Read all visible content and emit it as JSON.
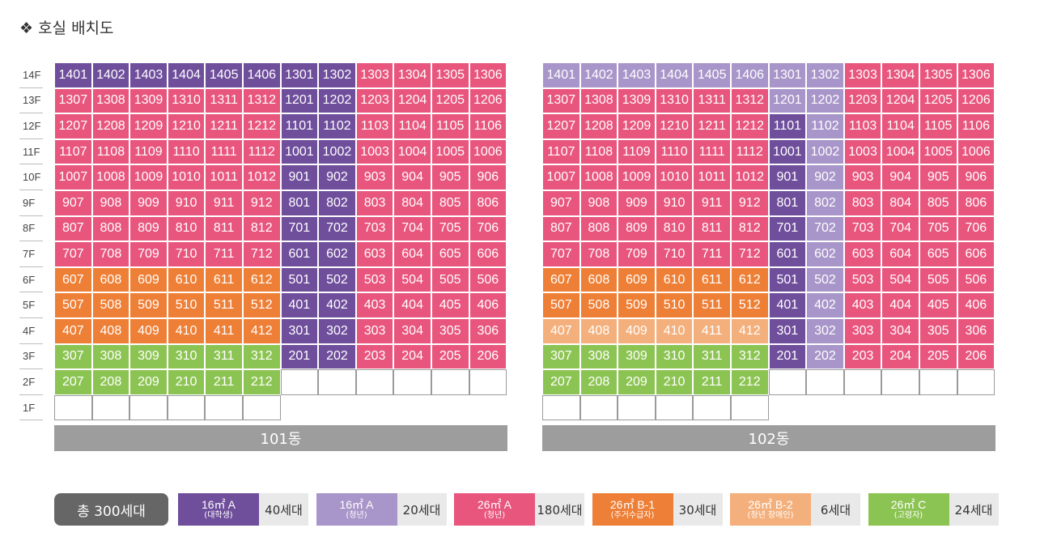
{
  "title": "❖ 호실 배치도",
  "floors": [
    "14F",
    "13F",
    "12F",
    "11F",
    "10F",
    "9F",
    "8F",
    "7F",
    "6F",
    "5F",
    "4F",
    "3F",
    "2F",
    "1F"
  ],
  "colors": {
    "A_dark": "#6f4e9c",
    "A_light": "#a895c9",
    "pink": "#e8557d",
    "orange": "#ee7f36",
    "peach": "#f4b07c",
    "green": "#8cc453",
    "empty": "#ffffff"
  },
  "buildings": [
    {
      "name": "101동",
      "rows": [
        [
          "D",
          "D",
          "D",
          "D",
          "D",
          "D"
        ],
        [
          "D",
          "D",
          "P",
          "P",
          "P",
          "P",
          "P",
          "P",
          "P",
          "P",
          "P",
          "P"
        ],
        [
          "D",
          "D",
          "P",
          "P",
          "P",
          "P",
          "P",
          "P",
          "P",
          "P",
          "P",
          "P"
        ],
        [
          "D",
          "D",
          "P",
          "P",
          "P",
          "P",
          "P",
          "P",
          "P",
          "P",
          "P",
          "P"
        ],
        [
          "D",
          "D",
          "P",
          "P",
          "P",
          "P",
          "P",
          "P",
          "P",
          "P",
          "P",
          "P"
        ],
        [
          "D",
          "D",
          "P",
          "P",
          "P",
          "P",
          "P",
          "P",
          "P",
          "P",
          "P",
          "P"
        ],
        [
          "D",
          "D",
          "P",
          "P",
          "P",
          "P",
          "P",
          "P",
          "P",
          "P",
          "P",
          "P"
        ],
        [
          "D",
          "D",
          "P",
          "P",
          "P",
          "P",
          "P",
          "P",
          "P",
          "P",
          "P",
          "P"
        ],
        [
          "D",
          "D",
          "P",
          "P",
          "P",
          "P",
          "O",
          "O",
          "O",
          "O",
          "O",
          "O"
        ],
        [
          "D",
          "D",
          "P",
          "P",
          "P",
          "P",
          "O",
          "O",
          "O",
          "O",
          "O",
          "O"
        ],
        [
          "D",
          "D",
          "P",
          "P",
          "P",
          "P",
          "O",
          "O",
          "O",
          "O",
          "O",
          "O"
        ],
        [
          "D",
          "D",
          "P",
          "P",
          "P",
          "P",
          "G",
          "G",
          "G",
          "G",
          "G",
          "G"
        ],
        [
          "D",
          "D",
          "P",
          "P",
          "P",
          "P",
          "G",
          "G",
          "G",
          "G",
          "G",
          "G"
        ],
        [
          "E",
          "E",
          "E",
          "E",
          "E",
          "E",
          "E",
          "E",
          "E",
          "E",
          "E",
          "E"
        ]
      ]
    },
    {
      "name": "102동",
      "rows": [
        [
          "L",
          "L",
          "L",
          "L",
          "L",
          "L"
        ],
        [
          "L",
          "L",
          "P",
          "P",
          "P",
          "P",
          "P",
          "P",
          "P",
          "P",
          "P",
          "P"
        ],
        [
          "L",
          "L",
          "P",
          "P",
          "P",
          "P",
          "P",
          "P",
          "P",
          "P",
          "P",
          "P"
        ],
        [
          "D",
          "L",
          "P",
          "P",
          "P",
          "P",
          "P",
          "P",
          "P",
          "P",
          "P",
          "P"
        ],
        [
          "D",
          "L",
          "P",
          "P",
          "P",
          "P",
          "P",
          "P",
          "P",
          "P",
          "P",
          "P"
        ],
        [
          "D",
          "L",
          "P",
          "P",
          "P",
          "P",
          "P",
          "P",
          "P",
          "P",
          "P",
          "P"
        ],
        [
          "D",
          "L",
          "P",
          "P",
          "P",
          "P",
          "P",
          "P",
          "P",
          "P",
          "P",
          "P"
        ],
        [
          "D",
          "L",
          "P",
          "P",
          "P",
          "P",
          "P",
          "P",
          "P",
          "P",
          "P",
          "P"
        ],
        [
          "D",
          "L",
          "P",
          "P",
          "P",
          "P",
          "O",
          "O",
          "O",
          "O",
          "O",
          "O"
        ],
        [
          "D",
          "L",
          "P",
          "P",
          "P",
          "P",
          "O",
          "O",
          "O",
          "O",
          "O",
          "O"
        ],
        [
          "D",
          "L",
          "P",
          "P",
          "P",
          "P",
          "K",
          "K",
          "K",
          "K",
          "K",
          "K"
        ],
        [
          "D",
          "L",
          "P",
          "P",
          "P",
          "P",
          "G",
          "G",
          "G",
          "G",
          "G",
          "G"
        ],
        [
          "D",
          "L",
          "P",
          "P",
          "P",
          "P",
          "G",
          "G",
          "G",
          "G",
          "G",
          "G"
        ],
        [
          "E",
          "E",
          "E",
          "E",
          "E",
          "E",
          "E",
          "E",
          "E",
          "E",
          "E",
          "E"
        ]
      ]
    }
  ],
  "legend": {
    "total": "총 300세대",
    "items": [
      {
        "type": "16㎡ A",
        "sub": "(대학생)",
        "count": "40세대",
        "color": "#6f4e9c"
      },
      {
        "type": "16㎡ A",
        "sub": "(청년)",
        "count": "20세대",
        "color": "#a895c9"
      },
      {
        "type": "26㎡ A",
        "sub": "(청년)",
        "count": "180세대",
        "color": "#e8557d"
      },
      {
        "type": "26㎡ B-1",
        "sub": "(주거수급자)",
        "count": "30세대",
        "color": "#ee7f36"
      },
      {
        "type": "26㎡ B-2",
        "sub": "(청년 장애인)",
        "count": "6세대",
        "color": "#f4b07c"
      },
      {
        "type": "26㎡ C",
        "sub": "(고령자)",
        "count": "24세대",
        "color": "#8cc453"
      }
    ]
  }
}
